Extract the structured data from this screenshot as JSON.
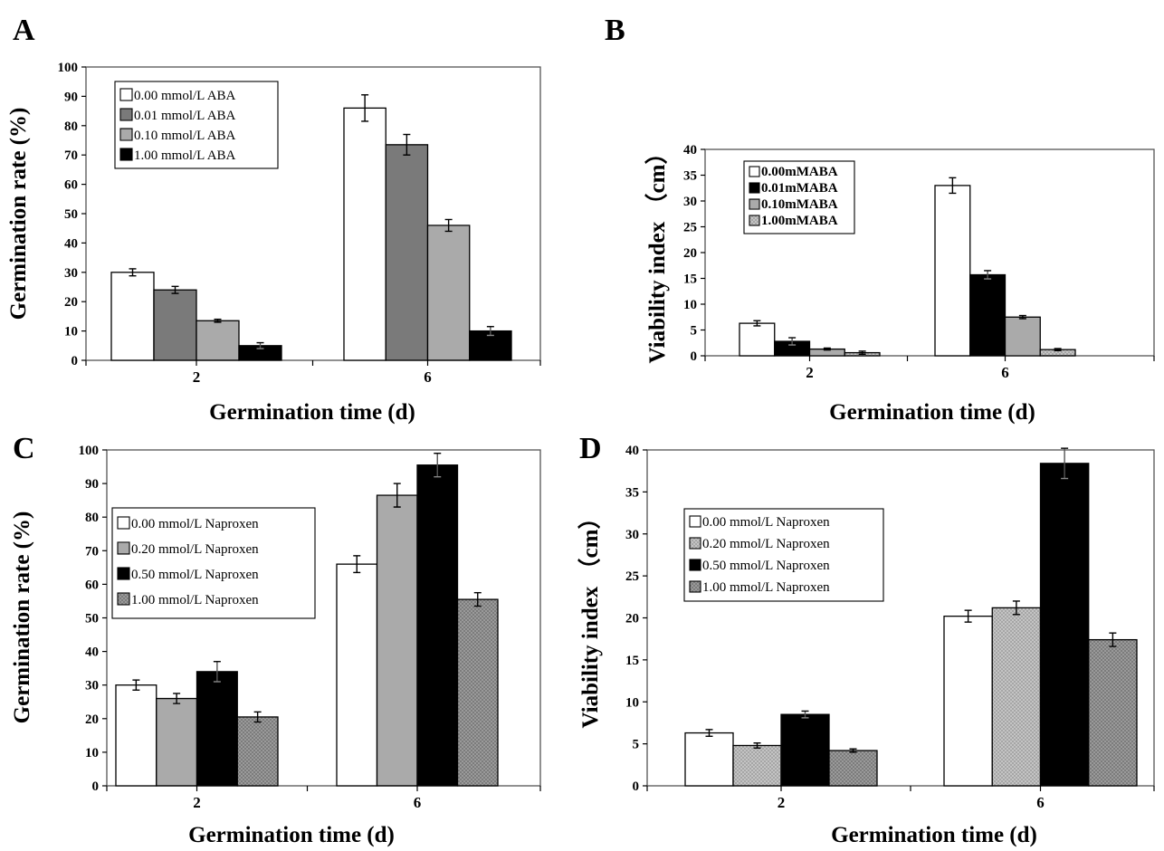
{
  "colors": {
    "white": "#ffffff",
    "black": "#000000",
    "dark_gray": "#7a7a7a",
    "hatch_gray": "#c8c8c8",
    "light_gray": "#b4b4b4",
    "mid_gray": "#8e8e8e"
  },
  "chart_data": [
    {
      "panel": "A",
      "type": "bar",
      "categories": [
        "2",
        "6"
      ],
      "xlabel": "Germination time (d)",
      "ylabel": "Germination rate (%)",
      "ylim": [
        0,
        100
      ],
      "yticks": [
        0,
        10,
        20,
        30,
        40,
        50,
        60,
        70,
        80,
        90,
        100
      ],
      "ytick_labels": [
        "0",
        "10",
        "20",
        "30",
        "40",
        "50",
        "60",
        "70",
        "80",
        "90",
        "100"
      ],
      "legend_position": "top-left",
      "grid": false,
      "series": [
        {
          "name": "0.00 mmol/L ABA",
          "values": [
            30,
            86
          ],
          "errors": [
            1.2,
            4.5
          ],
          "fill": "white"
        },
        {
          "name": "0.01 mmol/L ABA",
          "values": [
            24,
            73.5
          ],
          "errors": [
            1.2,
            3.5
          ],
          "fill": "dark_gray"
        },
        {
          "name": "0.10 mmol/L ABA",
          "values": [
            13.5,
            46
          ],
          "errors": [
            0.5,
            2.0
          ],
          "fill": "hatch_gray"
        },
        {
          "name": "1.00 mmol/L ABA",
          "values": [
            5,
            10
          ],
          "errors": [
            1.0,
            1.5
          ],
          "fill": "black"
        }
      ]
    },
    {
      "panel": "B",
      "type": "bar",
      "categories": [
        "2",
        "6"
      ],
      "xlabel": "Germination time (d)",
      "ylabel": "Viability index （cm）",
      "ylim": [
        0,
        40
      ],
      "yticks": [
        0,
        5,
        10,
        15,
        20,
        25,
        30,
        35,
        40
      ],
      "ytick_labels": [
        "0",
        "5",
        "10",
        "15",
        "20",
        "25",
        "30",
        "35",
        "40"
      ],
      "legend_position": "top-left",
      "grid": false,
      "series": [
        {
          "name": "0.00mMABA",
          "values": [
            6.3,
            33
          ],
          "errors": [
            0.5,
            1.5
          ],
          "fill": "white"
        },
        {
          "name": "0.01mMABA",
          "values": [
            2.8,
            15.7
          ],
          "errors": [
            0.7,
            0.8
          ],
          "fill": "black"
        },
        {
          "name": "0.10mMABA",
          "values": [
            1.3,
            7.5
          ],
          "errors": [
            0.2,
            0.3
          ],
          "fill": "hatch_gray"
        },
        {
          "name": "1.00mMABA",
          "values": [
            0.6,
            1.2
          ],
          "errors": [
            0.3,
            0.2
          ],
          "fill": "light_gray"
        }
      ]
    },
    {
      "panel": "C",
      "type": "bar",
      "categories": [
        "2",
        "6"
      ],
      "xlabel": "Germination time (d)",
      "ylabel": "Germination rate (%)",
      "ylim": [
        0,
        100
      ],
      "yticks": [
        0,
        10,
        20,
        30,
        40,
        50,
        60,
        70,
        80,
        90,
        100
      ],
      "ytick_labels": [
        "0",
        "10",
        "20",
        "30",
        "40",
        "50",
        "60",
        "70",
        "80",
        "90",
        "100"
      ],
      "legend_position": "top-left",
      "grid": false,
      "series": [
        {
          "name": "0.00 mmol/L  Naproxen",
          "values": [
            30,
            66
          ],
          "errors": [
            1.5,
            2.5
          ],
          "fill": "white"
        },
        {
          "name": "0.20 mmol/L  Naproxen",
          "values": [
            26,
            86.5
          ],
          "errors": [
            1.5,
            3.5
          ],
          "fill": "hatch_gray"
        },
        {
          "name": "0.50 mmol/L  Naproxen",
          "values": [
            34,
            95.5
          ],
          "errors": [
            3.0,
            3.5
          ],
          "fill": "black"
        },
        {
          "name": "1.00 mmol/L  Naproxen",
          "values": [
            20.5,
            55.5
          ],
          "errors": [
            1.5,
            2.0
          ],
          "fill": "mid_gray"
        }
      ]
    },
    {
      "panel": "D",
      "type": "bar",
      "categories": [
        "2",
        "6"
      ],
      "xlabel": "Germination time (d)",
      "ylabel": "Viability index （cm）",
      "ylim": [
        0,
        40
      ],
      "yticks": [
        0,
        5,
        10,
        15,
        20,
        25,
        30,
        35,
        40
      ],
      "ytick_labels": [
        "0",
        "5",
        "10",
        "15",
        "20",
        "25",
        "30",
        "35",
        "40"
      ],
      "legend_position": "top-left",
      "grid": false,
      "series": [
        {
          "name": "0.00 mmol/L Naproxen",
          "values": [
            6.3,
            20.2
          ],
          "errors": [
            0.4,
            0.7
          ],
          "fill": "white"
        },
        {
          "name": "0.20 mmol/L Naproxen",
          "values": [
            4.8,
            21.2
          ],
          "errors": [
            0.3,
            0.8
          ],
          "fill": "light_gray"
        },
        {
          "name": "0.50 mmol/L Naproxen",
          "values": [
            8.5,
            38.4
          ],
          "errors": [
            0.4,
            1.8
          ],
          "fill": "black"
        },
        {
          "name": "1.00 mmol/L Naproxen",
          "values": [
            4.2,
            17.4
          ],
          "errors": [
            0.2,
            0.8
          ],
          "fill": "mid_gray"
        }
      ]
    }
  ]
}
